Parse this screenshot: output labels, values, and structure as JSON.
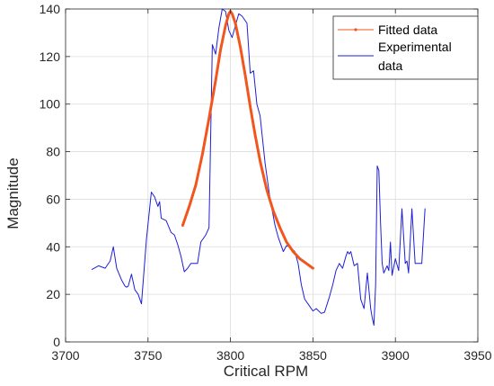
{
  "chart_data": {
    "type": "line",
    "xlabel": "Critical RPM",
    "ylabel": "Magnitude",
    "xlim": [
      3700,
      3950
    ],
    "ylim": [
      0,
      140
    ],
    "xticks": [
      "3700",
      "3750",
      "3800",
      "3850",
      "3900",
      "3950"
    ],
    "yticks": [
      "0",
      "20",
      "40",
      "60",
      "80",
      "100",
      "120",
      "140"
    ],
    "grid": true,
    "legend_position": "top-right",
    "legend": {
      "fitted": "Fitted data",
      "experimental_line1": "Experimental",
      "experimental_line2": "data"
    },
    "colors": {
      "fitted": "#f0561d",
      "experimental": "#1f1fd6",
      "grid": "#dcdcdc",
      "axis": "#262626"
    },
    "series": [
      {
        "name": "Experimental data",
        "x": [
          3716,
          3720,
          3724,
          3727,
          3729,
          3731,
          3734,
          3736,
          3737,
          3738,
          3740,
          3742,
          3744,
          3746,
          3749,
          3752,
          3754,
          3756,
          3757,
          3758,
          3761,
          3764,
          3766,
          3768,
          3770,
          3772,
          3774,
          3776,
          3778,
          3780,
          3782,
          3785,
          3787,
          3789,
          3791,
          3793,
          3795,
          3797,
          3799,
          3801,
          3803,
          3805,
          3807,
          3810,
          3812,
          3814,
          3816,
          3818,
          3821,
          3824,
          3827,
          3829,
          3832,
          3834,
          3836,
          3839,
          3841,
          3843,
          3845,
          3847,
          3850,
          3852,
          3855,
          3857,
          3860,
          3862,
          3864,
          3866,
          3868,
          3870,
          3871,
          3872,
          3873,
          3875,
          3877,
          3879,
          3881,
          3883,
          3885,
          3886,
          3887,
          3888,
          3889,
          3890,
          3891,
          3892,
          3893,
          3895,
          3896,
          3897,
          3898,
          3900,
          3902,
          3904,
          3906,
          3907,
          3908,
          3910,
          3912,
          3914,
          3916,
          3918
        ],
        "y": [
          30.5,
          32,
          31,
          34,
          40,
          31,
          26,
          23.5,
          23,
          23.5,
          28.5,
          22,
          20,
          16,
          43,
          63,
          61,
          57,
          59,
          52,
          51,
          46,
          45,
          41,
          36,
          29.5,
          31,
          33,
          33,
          33,
          42,
          45,
          48,
          125,
          121,
          132,
          140,
          139,
          131,
          128,
          133,
          138,
          137,
          134,
          113,
          114,
          100,
          95,
          75,
          60,
          49,
          44,
          38,
          40.5,
          40,
          38,
          33,
          24,
          18,
          16,
          13,
          14,
          12,
          12.5,
          19,
          24,
          30,
          33,
          31,
          36,
          38,
          37,
          38,
          32,
          33,
          18,
          14,
          29,
          14,
          10,
          7,
          24,
          74,
          72,
          50,
          33,
          29,
          32,
          30,
          42,
          28,
          35,
          30,
          56,
          33,
          34,
          29,
          56,
          33,
          33,
          33,
          56
        ]
      },
      {
        "name": "Fitted data",
        "x": [
          3771,
          3775,
          3779,
          3783,
          3787,
          3791,
          3794,
          3797,
          3799,
          3800,
          3801,
          3803,
          3806,
          3809,
          3812,
          3815,
          3818,
          3822,
          3826,
          3830,
          3834,
          3838,
          3842,
          3846,
          3850
        ],
        "y": [
          49,
          57,
          66,
          79,
          94,
          110,
          123,
          133,
          138,
          139,
          138,
          134,
          124,
          112,
          99,
          87,
          76,
          64,
          55,
          48,
          42,
          38,
          35,
          33,
          31
        ]
      }
    ]
  }
}
